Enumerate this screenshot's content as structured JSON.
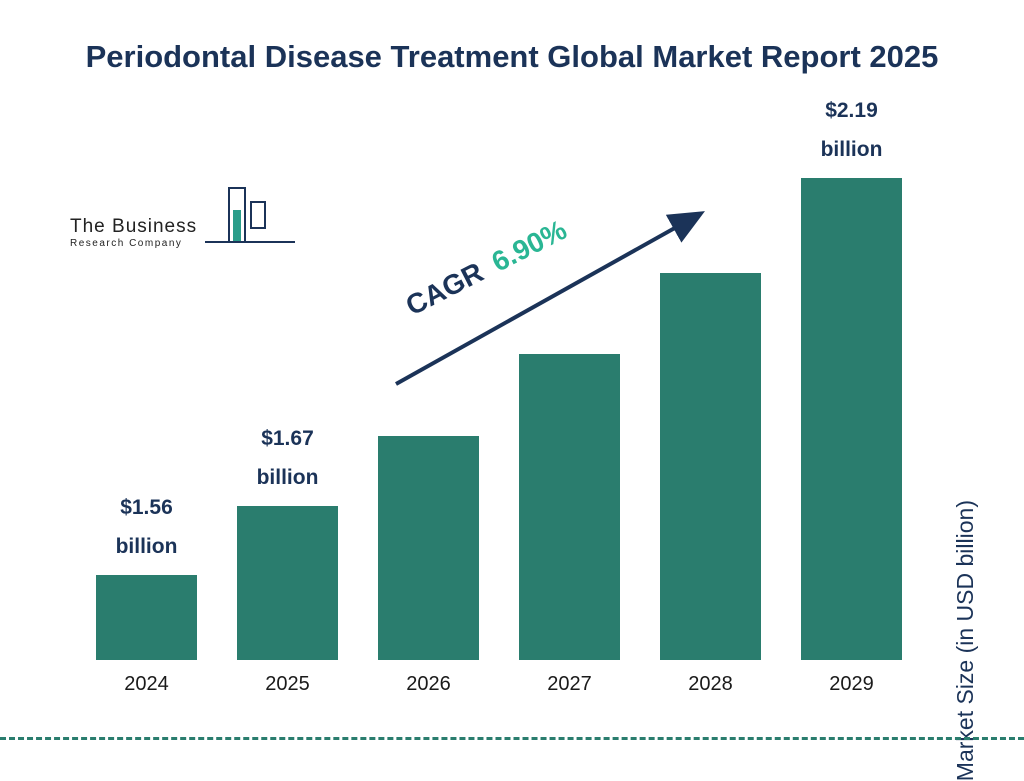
{
  "title": "Periodontal Disease Treatment Global Market Report 2025",
  "logo": {
    "line1": "The Business",
    "line2": "Research Company"
  },
  "cagr": {
    "prefix": "CAGR",
    "value": "6.90%"
  },
  "y_axis_label": "Market Size (in USD billion)",
  "colors": {
    "bar": "#2a7d6e",
    "navy": "#1b3358",
    "accent_green": "#2ab694"
  },
  "chart_data": {
    "type": "bar",
    "title": "Periodontal Disease Treatment Global Market Report 2025",
    "categories": [
      "2024",
      "2025",
      "2026",
      "2027",
      "2028",
      "2029"
    ],
    "values": [
      1.56,
      1.67,
      1.78,
      1.91,
      2.04,
      2.19
    ],
    "bar_labels": [
      {
        "amount": "$1.56",
        "unit": "billion"
      },
      {
        "amount": "$1.67",
        "unit": "billion"
      },
      null,
      null,
      null,
      {
        "amount": "$2.19",
        "unit": "billion"
      }
    ],
    "xlabel": "",
    "ylabel": "Market Size (in USD billion)",
    "annotation": "CAGR 6.90%",
    "legend": "none",
    "grid": false
  }
}
